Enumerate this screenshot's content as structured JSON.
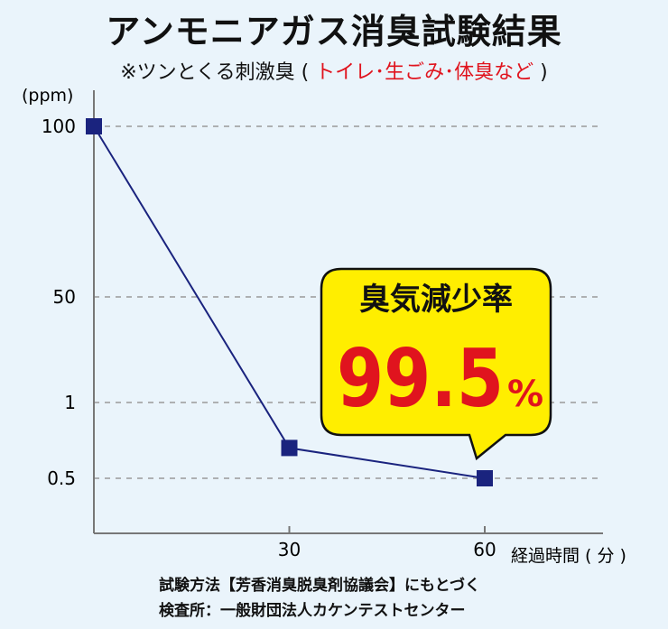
{
  "title": "アンモニアガス消臭試験結果",
  "subtitle": {
    "prefix": "※ツンとくる刺激臭 (",
    "examples": " トイレ･生ごみ･体臭など",
    "suffix": " )"
  },
  "chart_data": {
    "type": "line",
    "title": "アンモニアガス消臭試験結果",
    "ylabel": "(ppm)",
    "xlabel": "経過時間 ( 分 )",
    "y_ticks": [
      "100",
      "50",
      "1",
      "0.5"
    ],
    "x_ticks": [
      "30",
      "60"
    ],
    "series": [
      {
        "x": [
          0,
          30,
          60
        ],
        "y": [
          100,
          0.7,
          0.5
        ],
        "color": "#1a237e"
      }
    ],
    "grid": "dashed-horizontal",
    "y_scale": "non-linear (ticks 100, 50, 1, 0.5)"
  },
  "callout": {
    "label": "臭気減少率",
    "value": "99.5",
    "unit": "%",
    "label_color": "#111111",
    "value_color": "#e0141e",
    "background": "#ffee00"
  },
  "footer": {
    "line1": "試験方法【芳香消臭脱臭剤協議会】にもとづく",
    "line2": "検査所：一般財団法人カケンテストセンター"
  },
  "colors": {
    "background": "#eaf4fb",
    "line": "#1a237e",
    "grid": "#999999",
    "accent_red": "#e0141e"
  }
}
